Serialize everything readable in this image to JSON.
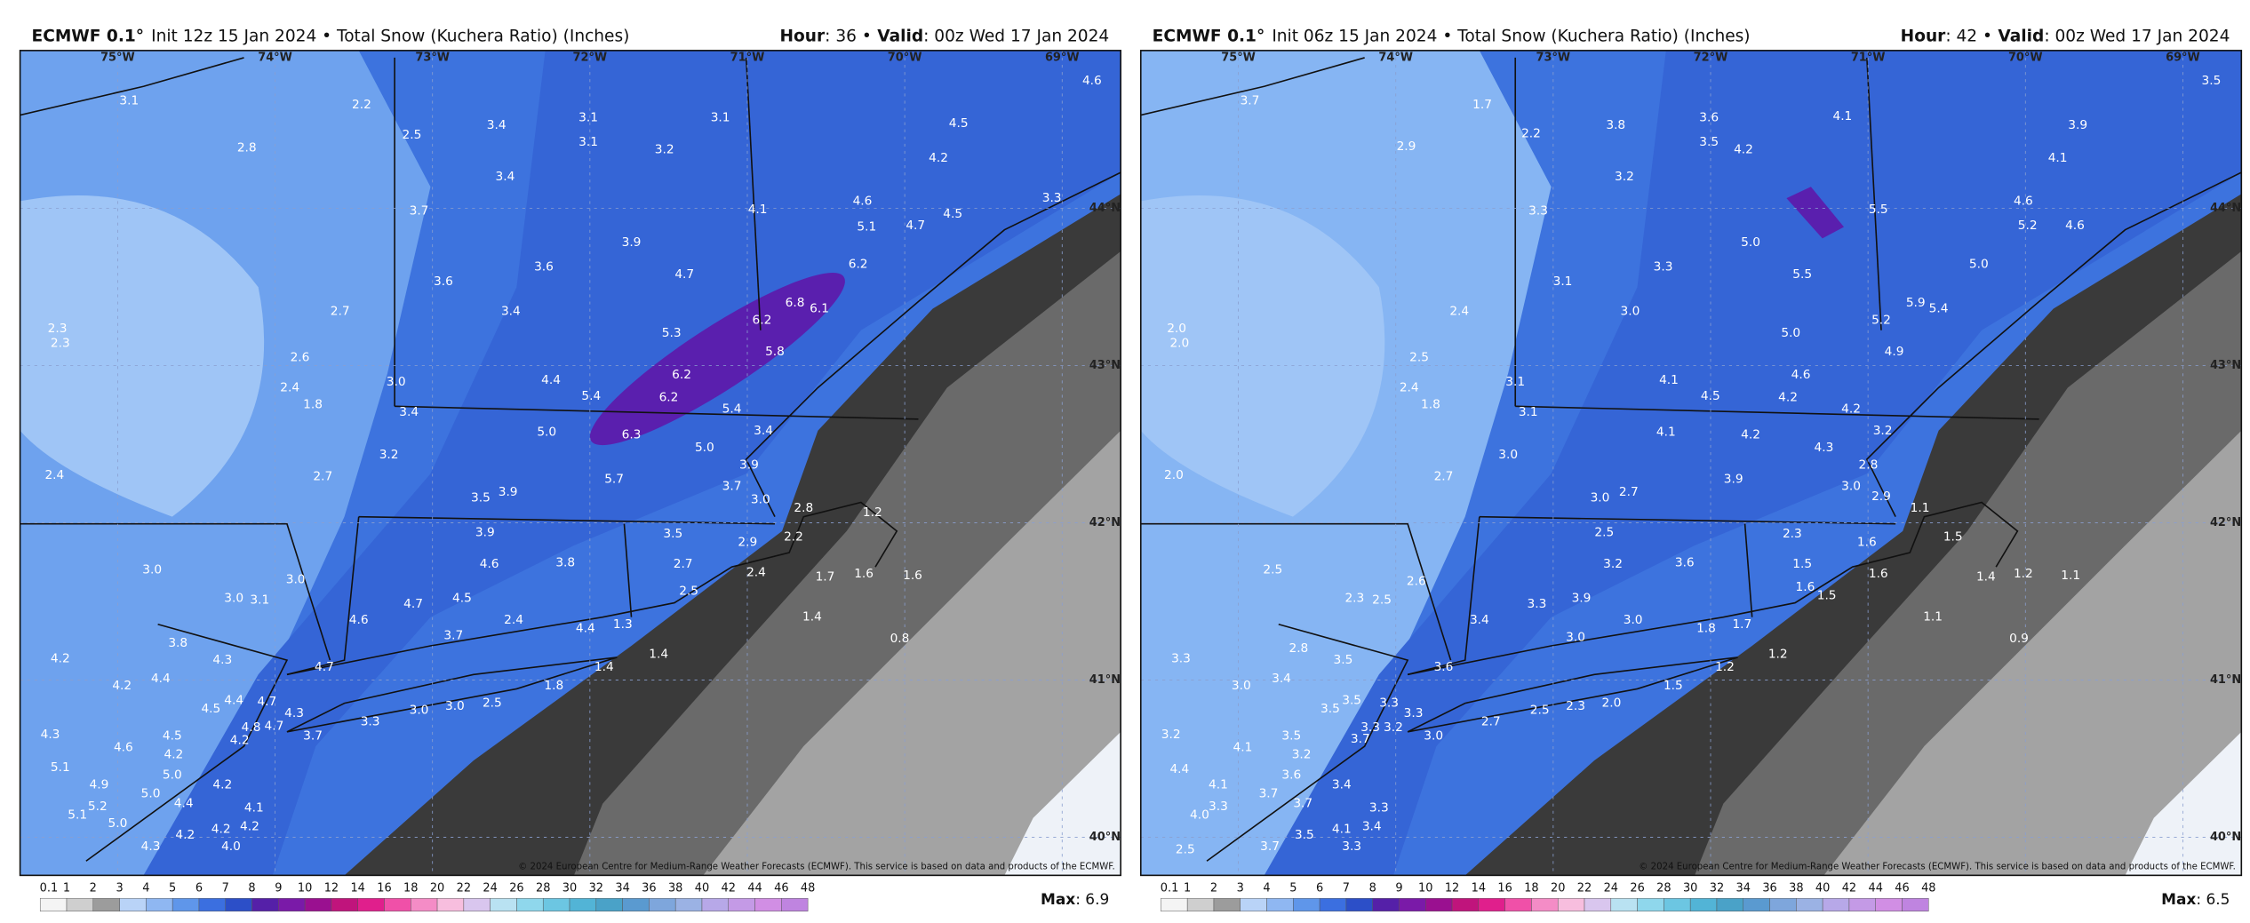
{
  "panels": [
    {
      "header": {
        "model": "ECMWF 0.1°",
        "run": "Init 12z 15 Jan 2024 • Total Snow (Kuchera Ratio) (Inches)",
        "hour_label": "Hour",
        "hour": ": 36 •",
        "valid_label": "Valid",
        "valid": ": 00z Wed 17 Jan 2024"
      },
      "longitudes": [
        "75°W",
        "74°W",
        "73°W",
        "72°W",
        "71°W",
        "70°W",
        "69°W"
      ],
      "latitudes": [
        "44°N",
        "43°N",
        "42°N",
        "41°N",
        "40°N"
      ],
      "values": [
        "3.1",
        "2.8",
        "2.2",
        "2.5",
        "3.4",
        "3.1",
        "3.1",
        "3.2",
        "3.1",
        "4.5",
        "4.6",
        "4.2",
        "3.4",
        "3.7",
        "4.1",
        "4.6",
        "5.1",
        "4.7",
        "4.5",
        "3.3",
        "3.9",
        "3.6",
        "3.6",
        "4.7",
        "6.2",
        "6.8",
        "6.1",
        "6.2",
        "2.7",
        "3.4",
        "2.3",
        "2.3",
        "5.3",
        "5.8",
        "2.6",
        "3.0",
        "4.4",
        "5.4",
        "6.2",
        "6.2",
        "2.4",
        "1.8",
        "3.4",
        "5.4",
        "5.0",
        "6.3",
        "3.4",
        "5.0",
        "3.2",
        "2.4",
        "2.7",
        "5.7",
        "3.9",
        "3.7",
        "3.5",
        "3.9",
        "3.0",
        "2.8",
        "1.2",
        "3.9",
        "3.5",
        "2.2",
        "2.9",
        "4.6",
        "3.8",
        "2.7",
        "3.0",
        "1.7",
        "1.6",
        "1.6",
        "2.4",
        "3.0",
        "3.0",
        "3.1",
        "4.5",
        "4.7",
        "2.5",
        "1.4",
        "4.6",
        "2.4",
        "3.7",
        "4.4",
        "1.3",
        "0.8",
        "3.8",
        "4.3",
        "1.4",
        "4.2",
        "4.4",
        "4.2",
        "4.7",
        "1.4",
        "1.8",
        "4.4",
        "4.5",
        "4.7",
        "4.3",
        "2.5",
        "3.0",
        "3.0",
        "4.2",
        "4.8",
        "4.7",
        "3.3",
        "3.7",
        "4.3",
        "4.5",
        "4.6",
        "4.2",
        "5.1",
        "5.0",
        "4.9",
        "4.2",
        "5.0",
        "4.4",
        "5.2",
        "5.1",
        "5.0",
        "4.2",
        "4.2",
        "4.1",
        "4.2",
        "4.0",
        "4.3"
      ],
      "copyright": "© 2024 European Centre for Medium-Range Weather Forecasts (ECMWF). This service is based on data and products of the ECMWF.",
      "max_label": "Max",
      "max": ": 6.9"
    },
    {
      "header": {
        "model": "ECMWF 0.1°",
        "run": "Init 06z 15 Jan 2024 • Total Snow (Kuchera Ratio) (Inches)",
        "hour_label": "Hour",
        "hour": ": 42 •",
        "valid_label": "Valid",
        "valid": ": 00z Wed 17 Jan 2024"
      },
      "longitudes": [
        "75°W",
        "74°W",
        "73°W",
        "72°W",
        "71°W",
        "70°W",
        "69°W"
      ],
      "latitudes": [
        "44°N",
        "43°N",
        "42°N",
        "41°N",
        "40°N"
      ],
      "values": [
        "3.7",
        "1.7",
        "2.2",
        "2.9",
        "3.8",
        "3.6",
        "3.5",
        "4.1",
        "3.9",
        "3.5",
        "4.2",
        "4.1",
        "3.2",
        "3.3",
        "5.5",
        "4.6",
        "5.2",
        "4.6",
        "5.0",
        "3.3",
        "3.1",
        "5.5",
        "5.0",
        "5.9",
        "5.4",
        "5.2",
        "2.4",
        "3.0",
        "2.0",
        "2.0",
        "5.0",
        "4.9",
        "2.5",
        "4.1",
        "4.5",
        "4.6",
        "4.2",
        "3.1",
        "2.4",
        "1.8",
        "3.1",
        "4.2",
        "4.1",
        "4.2",
        "3.2",
        "4.3",
        "3.0",
        "2.0",
        "2.7",
        "3.9",
        "2.8",
        "3.0",
        "3.0",
        "2.7",
        "2.9",
        "1.1",
        "1.5",
        "2.5",
        "2.3",
        "3.2",
        "3.6",
        "1.6",
        "1.5",
        "2.5",
        "1.6",
        "1.4",
        "1.2",
        "1.1",
        "1.6",
        "1.5",
        "2.6",
        "2.3",
        "2.5",
        "3.9",
        "3.3",
        "1.1",
        "3.4",
        "3.0",
        "1.8",
        "1.7",
        "0.9",
        "2.8",
        "3.0",
        "1.2",
        "3.3",
        "3.5",
        "3.4",
        "3.0",
        "3.6",
        "1.2",
        "1.5",
        "3.5",
        "3.5",
        "3.3",
        "3.3",
        "2.5",
        "2.3",
        "2.0",
        "2.7",
        "3.3",
        "3.2",
        "3.7",
        "3.0",
        "3.2",
        "3.5",
        "4.1",
        "3.2",
        "4.4",
        "3.6",
        "4.1",
        "3.4",
        "3.7",
        "3.7",
        "4.0",
        "3.3",
        "4.1",
        "3.4",
        "3.3",
        "3.5",
        "3.7",
        "3.3",
        "2.5"
      ],
      "copyright": "© 2024 European Centre for Medium-Range Weather Forecasts (ECMWF). This service is based on data and products of the ECMWF.",
      "max_label": "Max",
      "max": ": 6.5"
    }
  ],
  "colorbar": [
    0.1,
    1,
    2,
    3,
    4,
    5,
    6,
    7,
    8,
    9,
    10,
    12,
    14,
    16,
    18,
    20,
    22,
    24,
    26,
    28,
    30,
    32,
    34,
    36,
    38,
    40,
    42,
    44,
    46,
    48
  ]
}
